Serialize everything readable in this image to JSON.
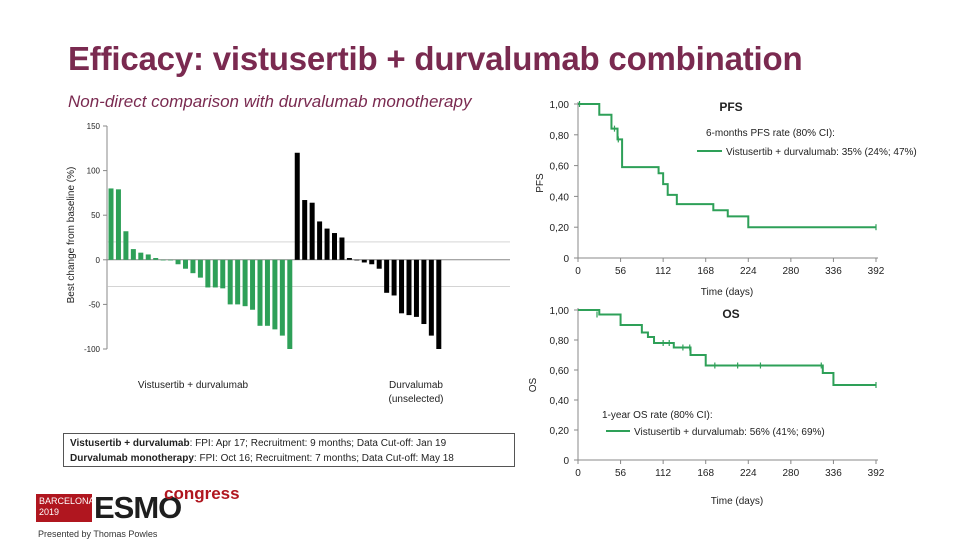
{
  "slide": {
    "title": "Efficacy: vistusertib + durvalumab combination",
    "subtitle": "Non-direct comparison with durvalumab monotherapy",
    "colors": {
      "title": "#7a2a50",
      "green": "#2ea058",
      "black": "#000000",
      "accent_red": "#b0161f"
    }
  },
  "waterfall_labels": {
    "group1": "Vistusertib + durvalumab",
    "group2_line1": "Durvalumab",
    "group2_line2": "(unselected)"
  },
  "info_box": {
    "line1_bold": "Vistusertib + durvalumab",
    "line1_rest": ": FPI: Apr 17; Recruitment: 9 months; Data Cut-off: Jan 19",
    "line2_bold": "Durvalumab monotherapy",
    "line2_rest": ": FPI: Oct 16; Recruitment: 7 months; Data Cut-off: May 18"
  },
  "footer": {
    "city": "BARCELONA",
    "year": "2019",
    "brand": "ESMO",
    "brand_suffix": "congress",
    "presenter": "Presented by Thomas Powles"
  },
  "chart_data": [
    {
      "type": "bar",
      "subtype": "waterfall",
      "ylabel": "Best change from baseline (%)",
      "ylim": [
        -100,
        150
      ],
      "yticks": [
        150,
        100,
        50,
        0,
        -50,
        -100
      ],
      "reference_lines": [
        20,
        -30
      ],
      "series": [
        {
          "name": "Vistusertib + durvalumab",
          "color": "#2ea058",
          "values": [
            80,
            79,
            32,
            12,
            8,
            6,
            2,
            0,
            0,
            -5,
            -10,
            -15,
            -20,
            -31,
            -31,
            -32,
            -50,
            -50,
            -52,
            -56,
            -74,
            -74,
            -78,
            -85,
            -100
          ]
        },
        {
          "name": "Durvalumab (unselected)",
          "color": "#000000",
          "values": [
            120,
            67,
            64,
            43,
            35,
            30,
            25,
            2,
            0,
            -3,
            -5,
            -10,
            -37,
            -40,
            -60,
            -62,
            -64,
            -72,
            -85,
            -100
          ]
        }
      ]
    },
    {
      "type": "line",
      "subtype": "kaplan-meier",
      "title": "PFS",
      "xlabel": "Time (days)",
      "ylabel": "PFS",
      "xlim": [
        0,
        392
      ],
      "ylim": [
        0,
        1
      ],
      "xticks": [
        0,
        56,
        112,
        168,
        224,
        280,
        336,
        392
      ],
      "yticks": [
        "0",
        "0,20",
        "0,40",
        "0,60",
        "0,80",
        "1,00"
      ],
      "annotation": "6-months PFS rate (80% CI):",
      "legend": "Vistusertib + durvalumab: 35% (24%; 47%)",
      "color": "#2ea058",
      "steps": [
        [
          0,
          1.0
        ],
        [
          28,
          0.93
        ],
        [
          44,
          0.84
        ],
        [
          52,
          0.77
        ],
        [
          58,
          0.59
        ],
        [
          106,
          0.55
        ],
        [
          112,
          0.48
        ],
        [
          118,
          0.41
        ],
        [
          130,
          0.35
        ],
        [
          178,
          0.31
        ],
        [
          197,
          0.27
        ],
        [
          224,
          0.2
        ],
        [
          392,
          0.2
        ]
      ],
      "censors": [
        [
          2,
          1.0
        ],
        [
          48,
          0.84
        ],
        [
          53,
          0.77
        ],
        [
          392,
          0.2
        ]
      ]
    },
    {
      "type": "line",
      "subtype": "kaplan-meier",
      "title": "OS",
      "xlabel": "Time (days)",
      "ylabel": "OS",
      "xlim": [
        0,
        392
      ],
      "ylim": [
        0,
        1
      ],
      "xticks": [
        0,
        56,
        112,
        168,
        224,
        280,
        336,
        392
      ],
      "yticks": [
        "0",
        "0,20",
        "0,40",
        "0,60",
        "0,80",
        "1,00"
      ],
      "annotation": "1-year OS rate (80% CI):",
      "legend": "Vistusertib + durvalumab: 56% (41%; 69%)",
      "color": "#2ea058",
      "steps": [
        [
          0,
          1.0
        ],
        [
          28,
          0.97
        ],
        [
          56,
          0.9
        ],
        [
          84,
          0.85
        ],
        [
          92,
          0.82
        ],
        [
          100,
          0.78
        ],
        [
          126,
          0.75
        ],
        [
          148,
          0.7
        ],
        [
          168,
          0.63
        ],
        [
          322,
          0.58
        ],
        [
          336,
          0.5
        ],
        [
          392,
          0.5
        ]
      ],
      "censors": [
        [
          25,
          0.97
        ],
        [
          112,
          0.78
        ],
        [
          120,
          0.78
        ],
        [
          138,
          0.75
        ],
        [
          147,
          0.75
        ],
        [
          180,
          0.63
        ],
        [
          210,
          0.63
        ],
        [
          240,
          0.63
        ],
        [
          320,
          0.63
        ],
        [
          392,
          0.5
        ]
      ]
    }
  ]
}
